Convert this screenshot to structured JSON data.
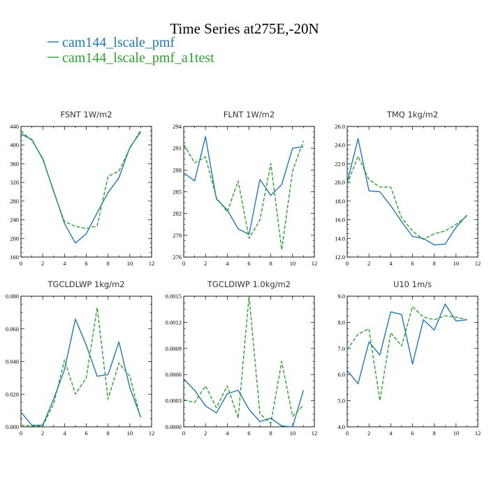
{
  "figure": {
    "title": "Time Series at275E,-20N",
    "legend": [
      {
        "label": "cam144_lscale_pmf",
        "color": "#1f77b4",
        "dash": "solid"
      },
      {
        "label": "cam144_lscale_pmf_a1test",
        "color": "#2ca02c",
        "dash": "dashed"
      }
    ]
  },
  "chart_data": [
    {
      "type": "line",
      "title": "FSNT   1W/m2",
      "x": [
        0,
        1,
        2,
        3,
        4,
        5,
        6,
        7,
        8,
        9,
        10,
        11
      ],
      "xlim": [
        0,
        12
      ],
      "xticks": [
        "0",
        "2",
        "4",
        "6",
        "8",
        "10",
        "12"
      ],
      "ylim": [
        160,
        440
      ],
      "yticks": [
        "160",
        "200",
        "240",
        "280",
        "320",
        "360",
        "400",
        "440"
      ],
      "series": [
        {
          "name": "cam144_lscale_pmf",
          "values": [
            424,
            412,
            370,
            302,
            232,
            190,
            210,
            255,
            298,
            330,
            395,
            428
          ]
        },
        {
          "name": "cam144_lscale_pmf_a1test",
          "values": [
            430,
            410,
            372,
            300,
            236,
            226,
            221,
            227,
            333,
            344,
            393,
            432
          ]
        }
      ]
    },
    {
      "type": "line",
      "title": "FLNT   1W/m2",
      "x": [
        0,
        1,
        2,
        3,
        4,
        5,
        6,
        7,
        8,
        9,
        10,
        11
      ],
      "xlim": [
        0,
        12
      ],
      "xticks": [
        "0",
        "2",
        "4",
        "6",
        "8",
        "10",
        "12"
      ],
      "ylim": [
        276,
        294
      ],
      "yticks": [
        "276",
        "279",
        "282",
        "285",
        "288",
        "291",
        "294"
      ],
      "series": [
        {
          "name": "cam144_lscale_pmf",
          "values": [
            287.6,
            286.5,
            292.6,
            284.0,
            282.5,
            279.9,
            279.1,
            286.7,
            284.5,
            286.0,
            291.0,
            291.2
          ]
        },
        {
          "name": "cam144_lscale_pmf_a1test",
          "values": [
            291.5,
            289.0,
            289.8,
            284.2,
            282.2,
            286.5,
            278.6,
            281.1,
            288.9,
            277.0,
            287.9,
            292.0
          ]
        }
      ]
    },
    {
      "type": "line",
      "title": "TMQ   1kg/m2",
      "x": [
        0,
        1,
        2,
        3,
        4,
        5,
        6,
        7,
        8,
        9,
        10,
        11
      ],
      "xlim": [
        0,
        12
      ],
      "xticks": [
        "0",
        "2",
        "4",
        "6",
        "8",
        "10",
        "12"
      ],
      "ylim": [
        12,
        26
      ],
      "yticks": [
        "12.0",
        "14.0",
        "16.0",
        "18.0",
        "20.0",
        "22.0",
        "24.0",
        "26.0"
      ],
      "series": [
        {
          "name": "cam144_lscale_pmf",
          "values": [
            20.0,
            24.7,
            19.1,
            19.0,
            17.5,
            15.8,
            14.2,
            14.0,
            13.3,
            13.4,
            15.2,
            16.5
          ]
        },
        {
          "name": "cam144_lscale_pmf_a1test",
          "values": [
            19.8,
            22.8,
            20.3,
            19.5,
            19.5,
            16.2,
            14.8,
            13.9,
            14.5,
            14.8,
            15.5,
            16.4
          ]
        }
      ]
    },
    {
      "type": "line",
      "title": "TGCLDLWP   1kg/m2",
      "x": [
        0,
        1,
        2,
        3,
        4,
        5,
        6,
        7,
        8,
        9,
        10,
        11
      ],
      "xlim": [
        0,
        12
      ],
      "xticks": [
        "0",
        "2",
        "4",
        "6",
        "8",
        "10",
        "12"
      ],
      "ylim": [
        0,
        0.08
      ],
      "yticks": [
        "0.000",
        "0.020",
        "0.040",
        "0.060",
        "0.080"
      ],
      "series": [
        {
          "name": "cam144_lscale_pmf",
          "values": [
            0.009,
            0.001,
            0.001,
            0.017,
            0.035,
            0.066,
            0.05,
            0.031,
            0.032,
            0.052,
            0.024,
            0.006
          ]
        },
        {
          "name": "cam144_lscale_pmf_a1test",
          "values": [
            0.001,
            0.0005,
            0.0005,
            0.014,
            0.041,
            0.02,
            0.03,
            0.073,
            0.017,
            0.039,
            0.031,
            0.005
          ]
        }
      ]
    },
    {
      "type": "line",
      "title": "TGCLDIWP   1.0kg/m2",
      "x": [
        0,
        1,
        2,
        3,
        4,
        5,
        6,
        7,
        8,
        9,
        10,
        11
      ],
      "xlim": [
        0,
        12
      ],
      "xticks": [
        "0",
        "2",
        "4",
        "6",
        "8",
        "10",
        "12"
      ],
      "ylim": [
        0,
        0.0015
      ],
      "yticks": [
        "0.0000",
        "0.0003",
        "0.0006",
        "0.0009",
        "0.0012",
        "0.0015"
      ],
      "series": [
        {
          "name": "cam144_lscale_pmf",
          "values": [
            0.00055,
            0.00042,
            0.00024,
            0.00016,
            0.00038,
            0.00042,
            0.0002,
            6e-05,
            0.0001,
            1e-05,
            0.0,
            0.00042
          ]
        },
        {
          "name": "cam144_lscale_pmf_a1test",
          "values": [
            0.00031,
            0.00028,
            0.00047,
            0.00022,
            0.00047,
            0.0001,
            0.0015,
            0.00015,
            4e-05,
            0.00075,
            0.00012,
            0.00025
          ]
        }
      ]
    },
    {
      "type": "line",
      "title": "U10   1m/s",
      "x": [
        0,
        1,
        2,
        3,
        4,
        5,
        6,
        7,
        8,
        9,
        10,
        11
      ],
      "xlim": [
        0,
        12
      ],
      "xticks": [
        "0",
        "2",
        "4",
        "6",
        "8",
        "10",
        "12"
      ],
      "ylim": [
        4,
        9
      ],
      "yticks": [
        "4.0",
        "5.0",
        "6.0",
        "7.0",
        "8.0",
        "9.0"
      ],
      "series": [
        {
          "name": "cam144_lscale_pmf",
          "values": [
            6.15,
            5.65,
            7.25,
            6.75,
            8.4,
            8.3,
            6.4,
            8.1,
            7.7,
            8.7,
            8.05,
            8.1
          ]
        },
        {
          "name": "cam144_lscale_pmf_a1test",
          "values": [
            6.95,
            7.55,
            7.75,
            5.0,
            7.6,
            7.1,
            8.6,
            8.2,
            8.1,
            8.25,
            8.2,
            8.1
          ]
        }
      ]
    }
  ]
}
